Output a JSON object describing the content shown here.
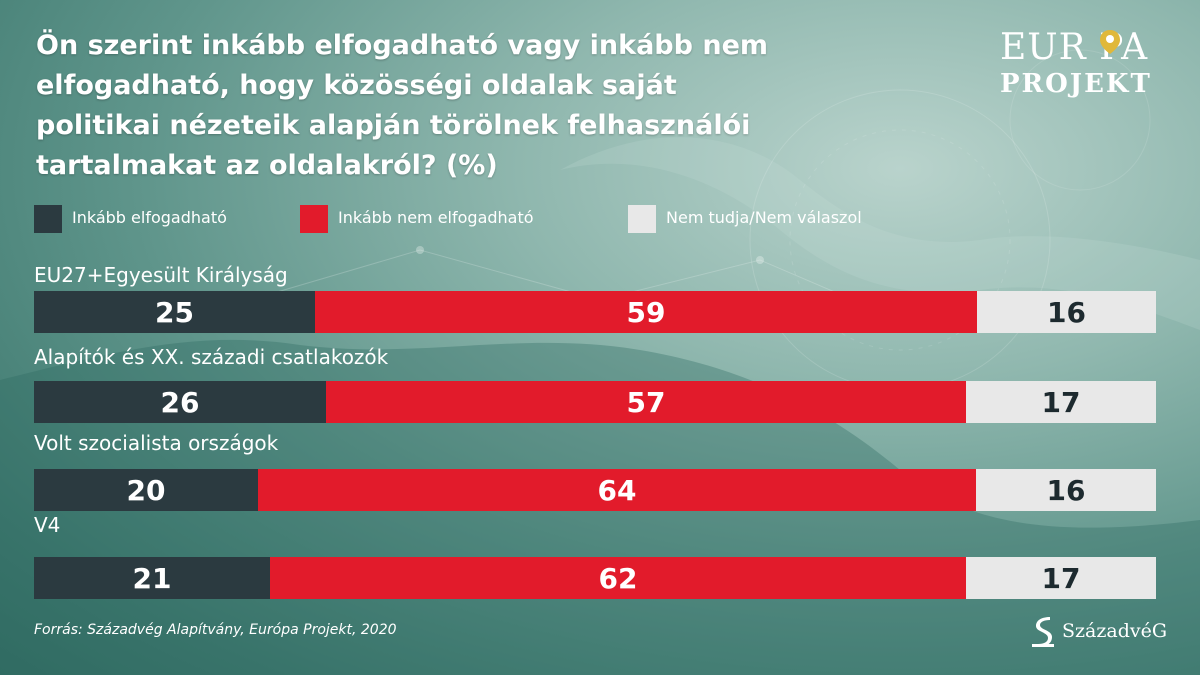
{
  "header": {
    "title": "Ön szerint inkább elfogadható vagy inkább nem elfogadható, hogy közösségi oldalak saját politikai nézeteik alapján törölnek felhasználói tartalmakat az oldalakról? (%)"
  },
  "logo": {
    "line1": "EUR PA",
    "line2": "PROJEKT",
    "pin_icon": "map-pin-icon"
  },
  "colors": {
    "elfogadhato": "#2b3a40",
    "nem_elfogadhato": "#e21b2b",
    "nem_tudja": "#e8e8e8"
  },
  "chart_data": {
    "type": "bar",
    "orientation": "horizontal",
    "stacked": true,
    "title": "Ön szerint inkább elfogadható vagy inkább nem elfogadható, hogy közösségi oldalak saját politikai nézeteik alapján törölnek felhasználói tartalmakat az oldalakról? (%)",
    "categories": [
      "EU27+Egyesült Királyság",
      "Alapítók és XX. századi csatlakozók",
      "Volt szocialista országok",
      "V4"
    ],
    "series": [
      {
        "name": "Inkább elfogadható",
        "color": "#2b3a40",
        "values": [
          25,
          26,
          20,
          21
        ]
      },
      {
        "name": "Inkább nem elfogadható",
        "color": "#e21b2b",
        "values": [
          59,
          57,
          64,
          62
        ]
      },
      {
        "name": "Nem tudja/Nem válaszol",
        "color": "#e8e8e8",
        "values": [
          16,
          17,
          16,
          17
        ]
      }
    ],
    "xlim": [
      0,
      100
    ],
    "legend_position": "top",
    "grid": false
  },
  "footer": {
    "source": "Forrás: Századvég Alapítvány, Európa Projekt, 2020",
    "brand": "SzázadvéG",
    "brand_icon": "szazadveg-logo-icon"
  }
}
